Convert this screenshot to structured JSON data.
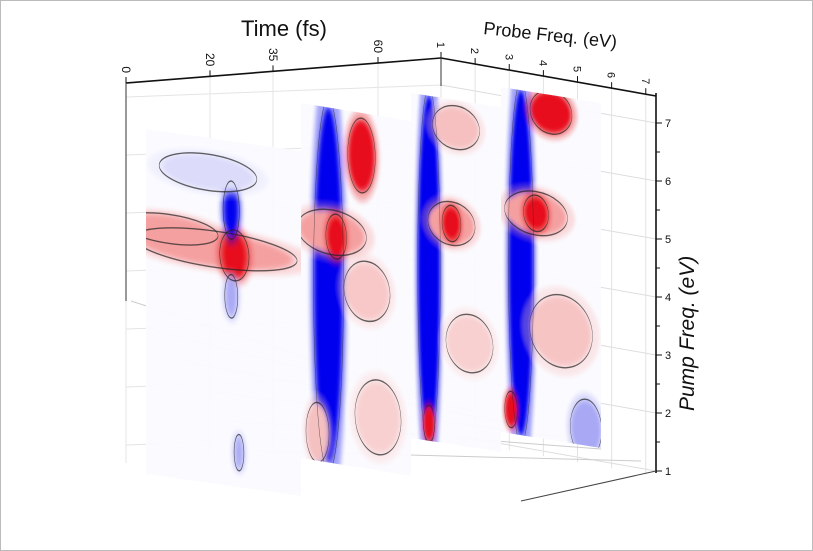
{
  "chart_data": {
    "type": "heatmap",
    "subtype": "3d-stacked-contour-slices",
    "axes": {
      "time": {
        "label": "Time (fs)",
        "ticks": [
          "0",
          "20",
          "35",
          "60"
        ]
      },
      "probe": {
        "label": "Probe Freq. (eV)",
        "ticks": [
          "1",
          "2",
          "3",
          "4",
          "5",
          "6",
          "7"
        ],
        "range": [
          1,
          7
        ]
      },
      "pump": {
        "label": "Pump Freq. (eV)",
        "ticks": [
          "1",
          "2",
          "3",
          "4",
          "5",
          "6",
          "7"
        ],
        "range": [
          1,
          7
        ]
      }
    },
    "slices": [
      {
        "time": 0
      },
      {
        "time": 20
      },
      {
        "time": 35
      },
      {
        "time": 60
      }
    ],
    "colors": {
      "positive": "#e8101a",
      "negative": "#0000ee",
      "zero": "#ffffff"
    },
    "grid": true
  }
}
